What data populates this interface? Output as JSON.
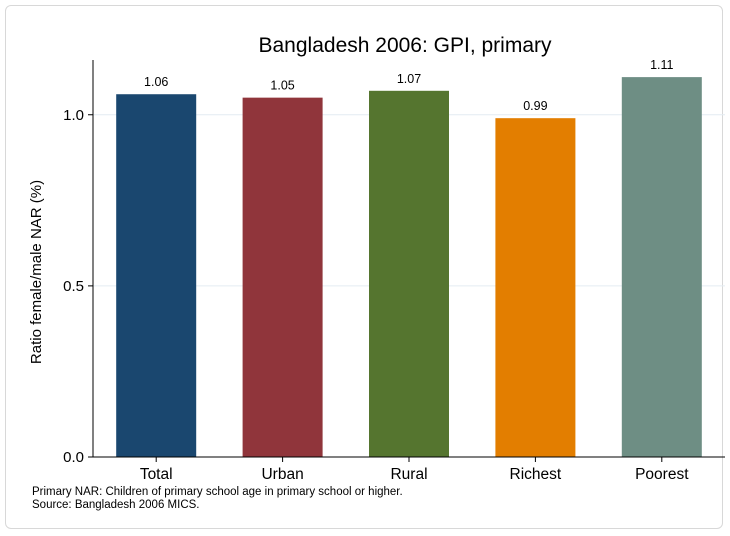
{
  "chart_data": {
    "type": "bar",
    "title": "Bangladesh 2006: GPI, primary",
    "ylabel": "Ratio female/male NAR (%)",
    "xlabel": "",
    "ylim": [
      0,
      1.16
    ],
    "yticks": [
      0,
      0.5,
      1
    ],
    "ytick_labels": [
      "0.0",
      "0.5",
      "1.0"
    ],
    "grid": true,
    "categories": [
      "Total",
      "Urban",
      "Rural",
      "Richest",
      "Poorest"
    ],
    "values": [
      1.06,
      1.05,
      1.07,
      0.99,
      1.11
    ],
    "value_labels": [
      "1.06",
      "1.05",
      "1.07",
      "0.99",
      "1.11"
    ],
    "colors": [
      "#1a476f",
      "#90353b",
      "#55752f",
      "#e37e00",
      "#6e8e84"
    ]
  },
  "notes": {
    "line1": "Primary NAR: Children of primary school age in primary school or higher.",
    "line2": "Source: Bangladesh 2006 MICS."
  }
}
